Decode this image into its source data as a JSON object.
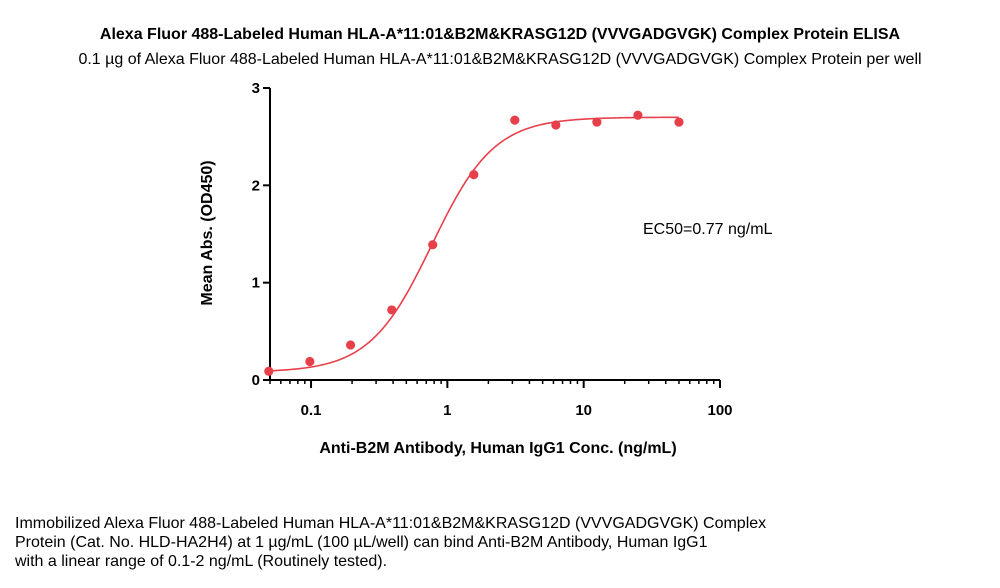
{
  "chart_data": {
    "type": "scatter",
    "title": "Alexa Fluor 488-Labeled Human HLA-A*11:01&B2M&KRASG12D (VVVGADGVGK) Complex Protein ELISA",
    "subtitle": "0.1 µg of Alexa Fluor 488-Labeled Human HLA-A*11:01&B2M&KRASG12D (VVVGADGVGK) Complex Protein per well",
    "xlabel": "Anti-B2M Antibody, Human IgG1 Conc. (ng/mL)",
    "ylabel": "Mean Abs. (OD450)",
    "xscale": "log",
    "xlim": [
      0.05,
      100
    ],
    "ylim": [
      0,
      3
    ],
    "xticks": [
      0.1,
      1,
      10,
      100
    ],
    "xtick_labels": [
      "0.1",
      "1",
      "10",
      "100"
    ],
    "yticks": [
      0,
      1,
      2,
      3
    ],
    "ytick_labels": [
      "0",
      "1",
      "2",
      "3"
    ],
    "grid": false,
    "point_color": "#e8404a",
    "curve_color": "#e8404a",
    "series": [
      {
        "x": [
          0.049,
          0.098,
          0.195,
          0.391,
          0.781,
          1.563,
          3.125,
          6.25,
          12.5,
          25,
          50
        ],
        "y": [
          0.09,
          0.19,
          0.36,
          0.72,
          1.39,
          2.11,
          2.67,
          2.62,
          2.65,
          2.72,
          2.65
        ]
      }
    ],
    "fit": {
      "model": "4PL",
      "bottom": 0.08,
      "top": 2.7,
      "ec50": 0.77,
      "hill": 1.9
    },
    "annotation": "EC50=0.77 ng/mL"
  },
  "caption": {
    "lines": [
      "Immobilized Alexa Fluor 488-Labeled Human HLA-A*11:01&B2M&KRASG12D (VVVGADGVGK) Complex",
      "Protein (Cat. No. HLD-HA2H4) at 1 µg/mL (100 µL/well) can bind Anti-B2M Antibody, Human IgG1",
      "with a linear range of 0.1-2 ng/mL (Routinely tested)."
    ]
  }
}
